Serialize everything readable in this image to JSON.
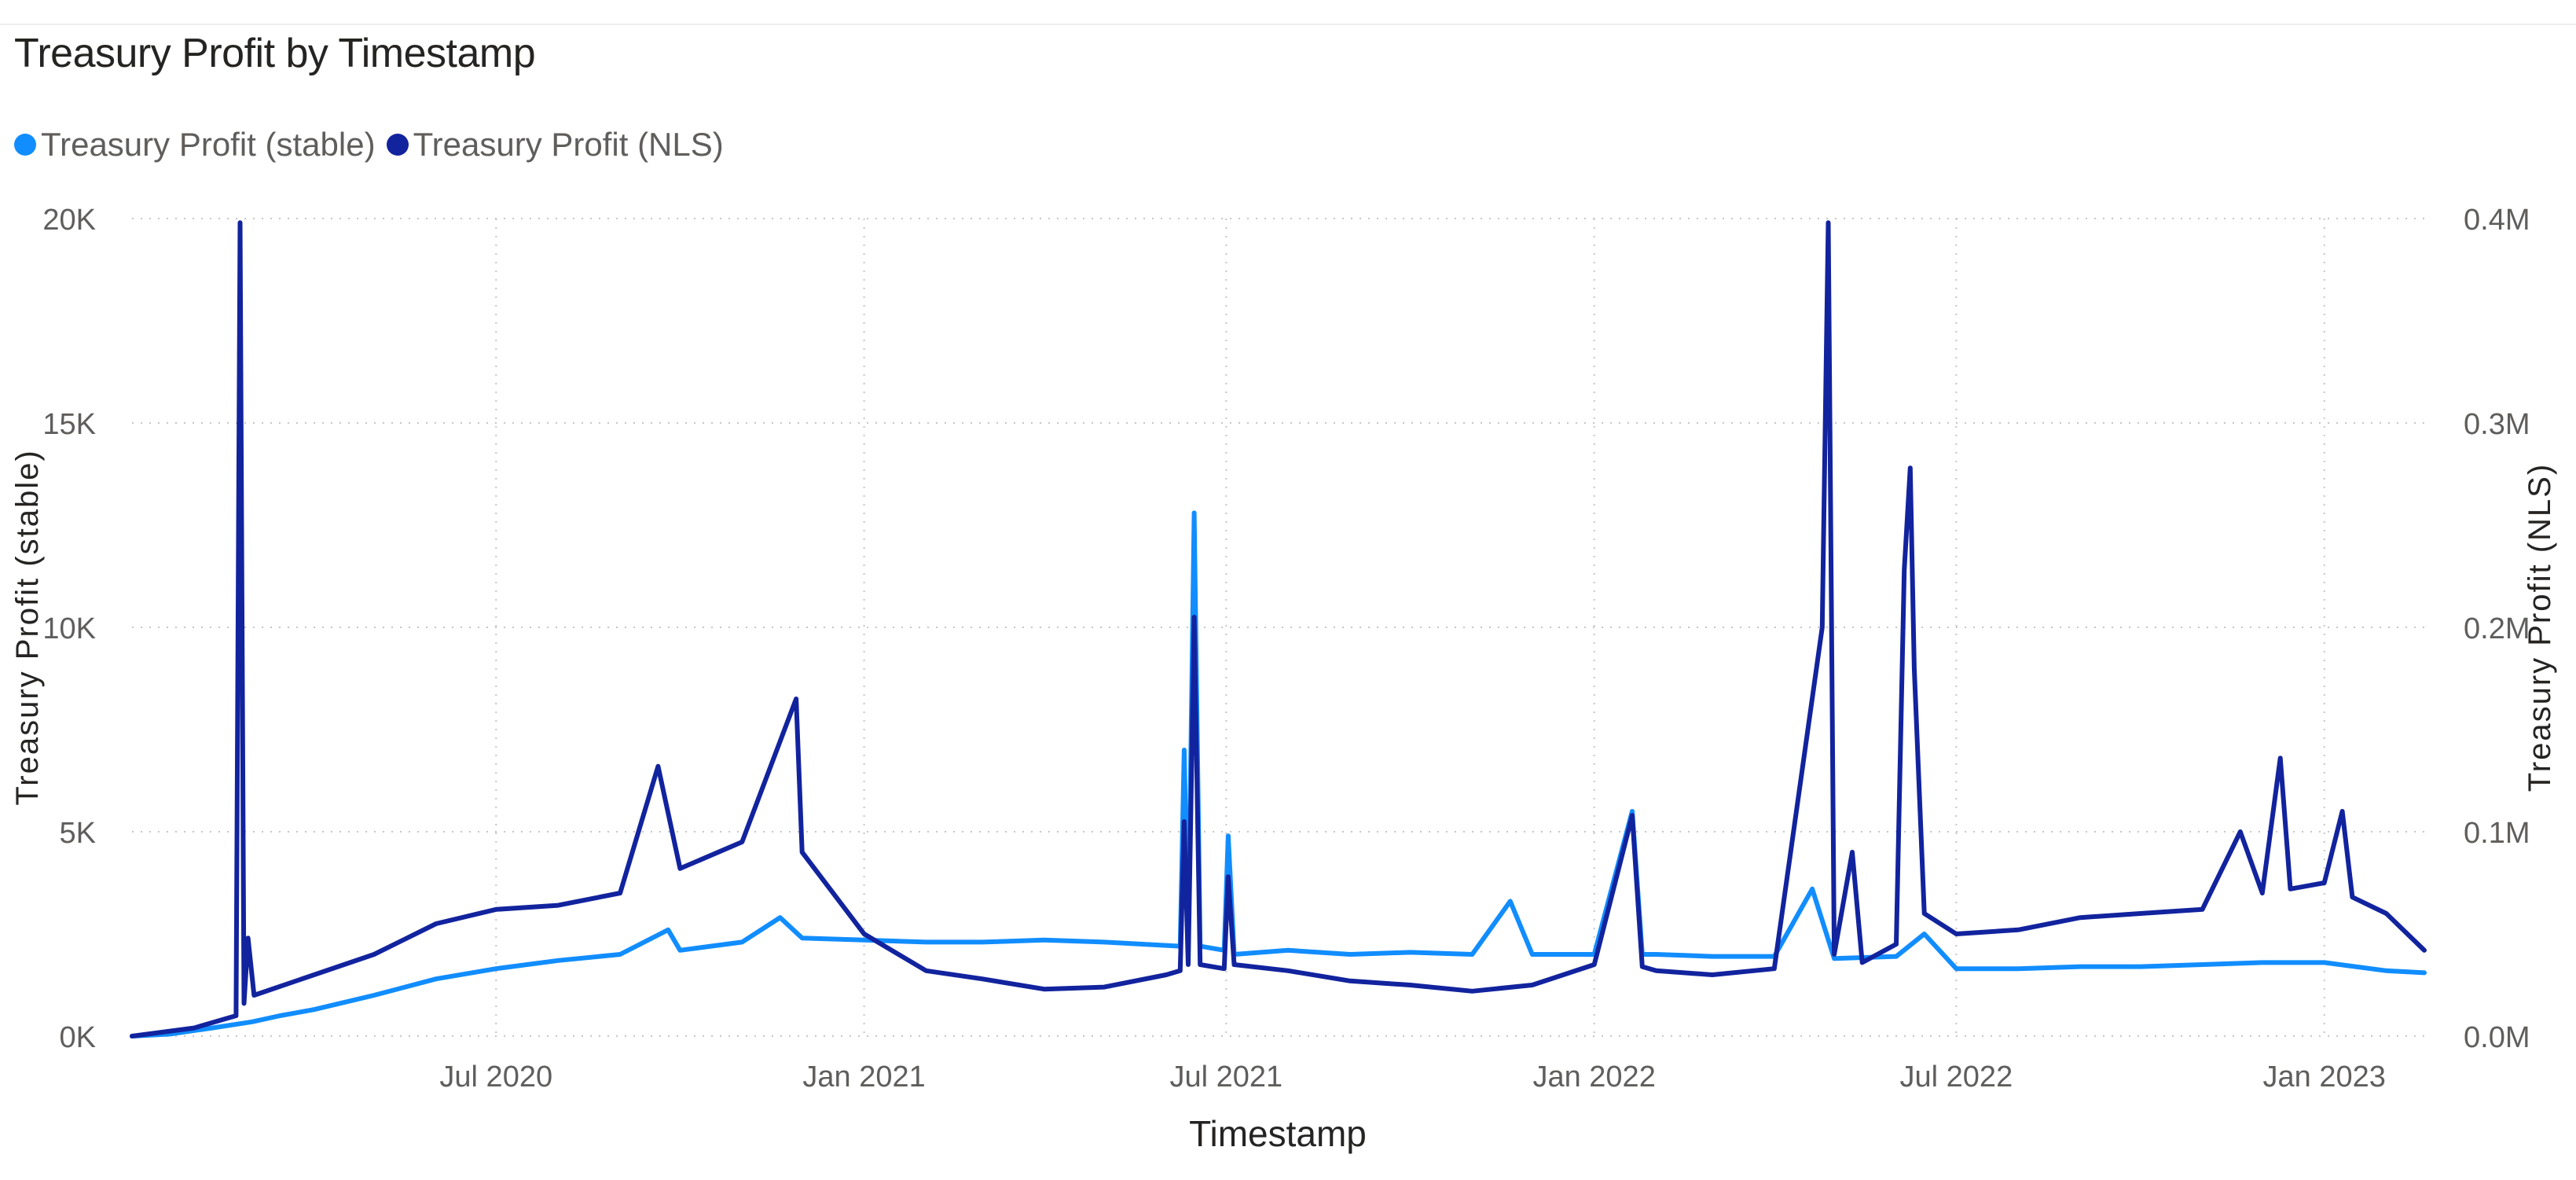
{
  "title": "Treasury Profit by Timestamp",
  "legend": [
    {
      "label": "Treasury Profit (stable)",
      "color": "#118DFF"
    },
    {
      "label": "Treasury Profit (NLS)",
      "color": "#12239E"
    }
  ],
  "chart_data": {
    "type": "line",
    "title": "Treasury Profit by Timestamp",
    "xlabel": "Timestamp",
    "ylabel_left": "Treasury Profit (stable)",
    "ylabel_right": "Treasury Profit (NLS)",
    "x_range": [
      "2020-01-01",
      "2023-02-20"
    ],
    "x_ticks": [
      {
        "date": "2020-07-01",
        "label": "Jul 2020"
      },
      {
        "date": "2021-01-01",
        "label": "Jan 2021"
      },
      {
        "date": "2021-07-01",
        "label": "Jul 2021"
      },
      {
        "date": "2022-01-01",
        "label": "Jan 2022"
      },
      {
        "date": "2022-07-01",
        "label": "Jul 2022"
      },
      {
        "date": "2023-01-01",
        "label": "Jan 2023"
      }
    ],
    "y_left": {
      "min": 0,
      "max": 20000,
      "ticks": [
        0,
        5000,
        10000,
        15000,
        20000
      ],
      "tick_labels": [
        "0K",
        "5K",
        "10K",
        "15K",
        "20K"
      ]
    },
    "y_right": {
      "min": 0,
      "max": 400000,
      "ticks": [
        0,
        100000,
        200000,
        300000,
        400000
      ],
      "tick_labels": [
        "0.0M",
        "0.1M",
        "0.2M",
        "0.3M",
        "0.4M"
      ]
    },
    "grid": true,
    "legend_position": "top-left",
    "series": [
      {
        "name": "Treasury Profit (stable)",
        "axis": "left",
        "color": "#118DFF",
        "points": [
          [
            "2020-01-01",
            0
          ],
          [
            "2020-01-20",
            50
          ],
          [
            "2020-02-10",
            200
          ],
          [
            "2020-03-01",
            350
          ],
          [
            "2020-03-15",
            500
          ],
          [
            "2020-04-01",
            650
          ],
          [
            "2020-05-01",
            1000
          ],
          [
            "2020-06-01",
            1400
          ],
          [
            "2020-07-01",
            1650
          ],
          [
            "2020-08-01",
            1850
          ],
          [
            "2020-09-01",
            2000
          ],
          [
            "2020-09-25",
            2600
          ],
          [
            "2020-10-01",
            2100
          ],
          [
            "2020-11-01",
            2300
          ],
          [
            "2020-11-20",
            2900
          ],
          [
            "2020-12-01",
            2400
          ],
          [
            "2021-01-01",
            2350
          ],
          [
            "2021-02-01",
            2300
          ],
          [
            "2021-03-01",
            2300
          ],
          [
            "2021-04-01",
            2350
          ],
          [
            "2021-05-01",
            2300
          ],
          [
            "2021-06-08",
            2200
          ],
          [
            "2021-06-10",
            7000
          ],
          [
            "2021-06-12",
            2200
          ],
          [
            "2021-06-15",
            12800
          ],
          [
            "2021-06-18",
            2200
          ],
          [
            "2021-06-30",
            2100
          ],
          [
            "2021-07-02",
            4900
          ],
          [
            "2021-07-05",
            2000
          ],
          [
            "2021-08-01",
            2100
          ],
          [
            "2021-09-01",
            2000
          ],
          [
            "2021-10-01",
            2050
          ],
          [
            "2021-11-01",
            2000
          ],
          [
            "2021-11-20",
            3300
          ],
          [
            "2021-12-01",
            2000
          ],
          [
            "2022-01-01",
            2000
          ],
          [
            "2022-01-20",
            5500
          ],
          [
            "2022-01-25",
            2000
          ],
          [
            "2022-02-01",
            2000
          ],
          [
            "2022-03-01",
            1950
          ],
          [
            "2022-04-01",
            1950
          ],
          [
            "2022-04-20",
            3600
          ],
          [
            "2022-05-01",
            1900
          ],
          [
            "2022-06-01",
            1950
          ],
          [
            "2022-06-15",
            2500
          ],
          [
            "2022-07-01",
            1650
          ],
          [
            "2022-08-01",
            1650
          ],
          [
            "2022-09-01",
            1700
          ],
          [
            "2022-10-01",
            1700
          ],
          [
            "2022-11-01",
            1750
          ],
          [
            "2022-12-01",
            1800
          ],
          [
            "2023-01-01",
            1800
          ],
          [
            "2023-02-01",
            1600
          ],
          [
            "2023-02-20",
            1550
          ]
        ]
      },
      {
        "name": "Treasury Profit (NLS)",
        "axis": "right",
        "color": "#12239E",
        "points": [
          [
            "2020-01-01",
            0
          ],
          [
            "2020-02-01",
            4000
          ],
          [
            "2020-02-22",
            10000
          ],
          [
            "2020-02-24",
            398000
          ],
          [
            "2020-02-26",
            16000
          ],
          [
            "2020-02-28",
            48000
          ],
          [
            "2020-03-02",
            20000
          ],
          [
            "2020-04-01",
            30000
          ],
          [
            "2020-05-01",
            40000
          ],
          [
            "2020-06-01",
            55000
          ],
          [
            "2020-07-01",
            62000
          ],
          [
            "2020-08-01",
            64000
          ],
          [
            "2020-09-01",
            70000
          ],
          [
            "2020-09-20",
            132000
          ],
          [
            "2020-10-01",
            82000
          ],
          [
            "2020-11-01",
            95000
          ],
          [
            "2020-11-28",
            165000
          ],
          [
            "2020-12-01",
            90000
          ],
          [
            "2021-01-01",
            50000
          ],
          [
            "2021-02-01",
            32000
          ],
          [
            "2021-03-01",
            28000
          ],
          [
            "2021-04-01",
            23000
          ],
          [
            "2021-05-01",
            24000
          ],
          [
            "2021-06-01",
            30000
          ],
          [
            "2021-06-08",
            32000
          ],
          [
            "2021-06-10",
            105000
          ],
          [
            "2021-06-12",
            35000
          ],
          [
            "2021-06-15",
            205000
          ],
          [
            "2021-06-18",
            35000
          ],
          [
            "2021-06-30",
            33000
          ],
          [
            "2021-07-02",
            78000
          ],
          [
            "2021-07-05",
            35000
          ],
          [
            "2021-08-01",
            32000
          ],
          [
            "2021-09-01",
            27000
          ],
          [
            "2021-10-01",
            25000
          ],
          [
            "2021-11-01",
            22000
          ],
          [
            "2021-12-01",
            25000
          ],
          [
            "2022-01-01",
            35000
          ],
          [
            "2022-01-20",
            108000
          ],
          [
            "2022-01-25",
            34000
          ],
          [
            "2022-02-01",
            32000
          ],
          [
            "2022-03-01",
            30000
          ],
          [
            "2022-04-01",
            33000
          ],
          [
            "2022-04-25",
            200000
          ],
          [
            "2022-04-28",
            398000
          ],
          [
            "2022-05-01",
            40000
          ],
          [
            "2022-05-10",
            90000
          ],
          [
            "2022-05-15",
            36000
          ],
          [
            "2022-06-01",
            45000
          ],
          [
            "2022-06-05",
            228000
          ],
          [
            "2022-06-08",
            278000
          ],
          [
            "2022-06-10",
            180000
          ],
          [
            "2022-06-15",
            60000
          ],
          [
            "2022-07-01",
            50000
          ],
          [
            "2022-08-01",
            52000
          ],
          [
            "2022-09-01",
            58000
          ],
          [
            "2022-10-01",
            60000
          ],
          [
            "2022-11-01",
            62000
          ],
          [
            "2022-11-20",
            100000
          ],
          [
            "2022-12-01",
            70000
          ],
          [
            "2022-12-10",
            136000
          ],
          [
            "2022-12-15",
            72000
          ],
          [
            "2023-01-01",
            75000
          ],
          [
            "2023-01-10",
            110000
          ],
          [
            "2023-01-15",
            68000
          ],
          [
            "2023-02-01",
            60000
          ],
          [
            "2023-02-20",
            42000
          ]
        ]
      }
    ]
  }
}
